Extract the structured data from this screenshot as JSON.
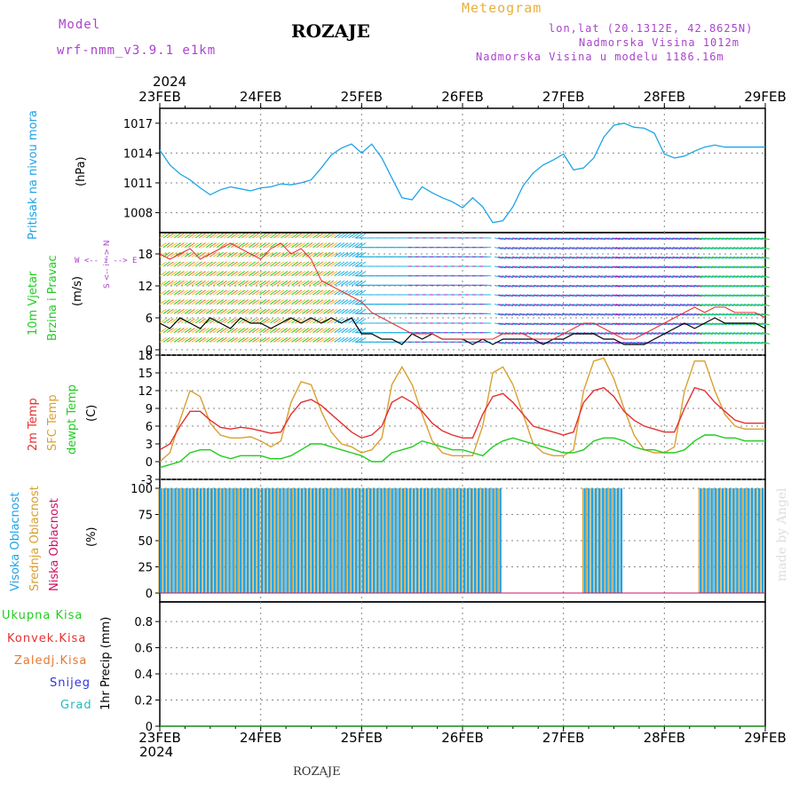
{
  "header": {
    "model_label": "Model",
    "model_name": "wrf-nmm_v3.9.1  e1km",
    "station": "ROZAJE",
    "product": "Meteogram",
    "coords": "lon,lat (20.1312E, 42.8625N)",
    "elev": "Nadmorska Visina 1012m",
    "elev_model": "Nadmorska Visina u modelu 1186.16m",
    "credit": "made by Angel",
    "footer_station": "ROZAJE"
  },
  "axis": {
    "year": "2024",
    "days": [
      "23FEB",
      "24FEB",
      "25FEB",
      "26FEB",
      "27FEB",
      "28FEB",
      "29FEB"
    ]
  },
  "panel_labels": {
    "pressure": {
      "name": "Pritisak na nivou mora",
      "unit": "(hPa)"
    },
    "wind": {
      "name1": "10m Vjetar",
      "name2": "Brzina i Pravac",
      "unit": "(m/s)",
      "compass": "W <-- i --> E",
      "ns": "S <-- i --> N"
    },
    "temp": {
      "t2m": "2m Temp",
      "sfc": "SFC Temp",
      "dew": "dewpt Temp",
      "unit": "(C)"
    },
    "cloud": {
      "high": "Visoka Oblacnost",
      "mid": "Srednja Oblacnost",
      "low": "Niska Oblacnost",
      "unit": "(%)"
    },
    "precip": {
      "total": "Ukupna Kisa",
      "conv": "Konvek.Kisa",
      "frozen": "Zaledj.Kisa",
      "snow": "Snijeg",
      "grad": "Grad",
      "unit": "1hr Precip (mm)"
    }
  },
  "colors": {
    "pressure": "#1fa3e6",
    "wind_speed": "#000000",
    "gust": "#e53030",
    "t2m": "#e53030",
    "sfc": "#d9a030",
    "dew": "#22cc22",
    "cloud_high": "#1fa3e6",
    "cloud_mid": "#d9a030",
    "cloud_low": "#cc1166",
    "purple": "#aa44cc",
    "orange": "#e8b040"
  },
  "chart_data": [
    {
      "type": "line",
      "name": "pressure",
      "yticks": [
        1008,
        1011,
        1014,
        1017
      ],
      "ylim": [
        1006,
        1018.5
      ],
      "x": [
        0,
        0.1,
        0.2,
        0.3,
        0.4,
        0.5,
        0.6,
        0.7,
        0.8,
        0.9,
        1.0,
        1.1,
        1.2,
        1.3,
        1.4,
        1.5,
        1.6,
        1.7,
        1.8,
        1.9,
        2.0,
        2.1,
        2.2,
        2.3,
        2.4,
        2.5,
        2.6,
        2.7,
        2.8,
        2.9,
        3.0,
        3.1,
        3.2,
        3.3,
        3.4,
        3.5,
        3.6,
        3.7,
        3.8,
        3.9,
        4.0,
        4.1,
        4.2,
        4.3,
        4.4,
        4.5,
        4.6,
        4.7,
        4.8,
        4.9,
        5.0,
        5.1,
        5.2,
        5.3,
        5.4,
        5.5,
        5.6,
        5.7,
        5.8,
        5.9,
        6.0
      ],
      "series": [
        {
          "values": [
            1014.3,
            1012.8,
            1011.9,
            1011.3,
            1010.5,
            1009.8,
            1010.3,
            1010.6,
            1010.4,
            1010.2,
            1010.5,
            1010.6,
            1010.9,
            1010.8,
            1011.0,
            1011.3,
            1012.5,
            1013.8,
            1014.5,
            1014.9,
            1014.0,
            1014.9,
            1013.5,
            1011.5,
            1009.5,
            1009.3,
            1010.6,
            1010.0,
            1009.5,
            1009.1,
            1008.5,
            1009.5,
            1008.6,
            1007.0,
            1007.2,
            1008.6,
            1010.7,
            1012.0,
            1012.8,
            1013.3,
            1013.9,
            1012.3,
            1012.5,
            1013.5,
            1015.6,
            1016.8,
            1017.0,
            1016.6,
            1016.5,
            1016.0,
            1013.9,
            1013.5,
            1013.7,
            1014.2,
            1014.6,
            1014.8,
            1014.6,
            1014.6,
            1014.6,
            1014.6,
            1014.6
          ]
        }
      ]
    },
    {
      "type": "line",
      "name": "wind",
      "yticks": [
        0,
        6,
        12,
        18
      ],
      "ylim": [
        -1,
        22
      ],
      "x": [
        0,
        0.1,
        0.2,
        0.3,
        0.4,
        0.5,
        0.6,
        0.7,
        0.8,
        0.9,
        1.0,
        1.1,
        1.2,
        1.3,
        1.4,
        1.5,
        1.6,
        1.7,
        1.8,
        1.9,
        2.0,
        2.1,
        2.2,
        2.3,
        2.4,
        2.5,
        2.6,
        2.7,
        2.8,
        2.9,
        3.0,
        3.1,
        3.2,
        3.3,
        3.4,
        3.5,
        3.6,
        3.7,
        3.8,
        3.9,
        4.0,
        4.1,
        4.2,
        4.3,
        4.4,
        4.5,
        4.6,
        4.7,
        4.8,
        4.9,
        5.0,
        5.1,
        5.2,
        5.3,
        5.4,
        5.5,
        5.6,
        5.7,
        5.8,
        5.9,
        6.0
      ],
      "series": [
        {
          "name": "speed",
          "values": [
            5,
            4,
            6,
            5,
            4,
            6,
            5,
            4,
            6,
            5,
            5,
            4,
            5,
            6,
            5,
            6,
            5,
            6,
            5,
            6,
            3,
            3,
            2,
            2,
            1,
            3,
            2,
            3,
            2,
            2,
            2,
            1,
            2,
            1,
            2,
            2,
            2,
            2,
            1,
            2,
            2,
            3,
            3,
            3,
            2,
            2,
            1,
            1,
            1,
            2,
            3,
            4,
            5,
            4,
            5,
            6,
            5,
            5,
            5,
            5,
            4
          ]
        },
        {
          "name": "gust",
          "values": [
            18,
            17,
            18,
            19,
            17,
            18,
            19,
            20,
            19,
            18,
            17,
            19,
            20,
            18,
            19,
            17,
            13,
            12,
            11,
            10,
            9,
            7,
            6,
            5,
            4,
            3,
            3,
            3,
            2,
            2,
            2,
            2,
            2,
            2,
            3,
            3,
            3,
            2,
            2,
            2,
            3,
            4,
            5,
            5,
            4,
            3,
            2,
            2,
            3,
            4,
            5,
            6,
            7,
            8,
            7,
            8,
            8,
            7,
            7,
            7,
            6
          ]
        }
      ]
    },
    {
      "type": "line",
      "name": "temperature",
      "yticks": [
        -3,
        0,
        3,
        6,
        9,
        12,
        15,
        18
      ],
      "ylim": [
        -3,
        18
      ],
      "x": [
        0,
        0.1,
        0.2,
        0.3,
        0.4,
        0.5,
        0.6,
        0.7,
        0.8,
        0.9,
        1.0,
        1.1,
        1.2,
        1.3,
        1.4,
        1.5,
        1.6,
        1.7,
        1.8,
        1.9,
        2.0,
        2.1,
        2.2,
        2.3,
        2.4,
        2.5,
        2.6,
        2.7,
        2.8,
        2.9,
        3.0,
        3.1,
        3.2,
        3.3,
        3.4,
        3.5,
        3.6,
        3.7,
        3.8,
        3.9,
        4.0,
        4.1,
        4.2,
        4.3,
        4.4,
        4.5,
        4.6,
        4.7,
        4.8,
        4.9,
        5.0,
        5.1,
        5.2,
        5.3,
        5.4,
        5.5,
        5.6,
        5.7,
        5.8,
        5.9,
        6.0
      ],
      "series": [
        {
          "name": "t2m",
          "values": [
            2,
            3,
            6,
            8.5,
            8.5,
            7,
            5.8,
            5.5,
            5.8,
            5.6,
            5.2,
            4.8,
            5,
            8,
            10,
            10.5,
            9.5,
            8,
            6.5,
            5,
            4,
            4.5,
            6,
            10,
            11,
            10,
            8.5,
            6.5,
            5.2,
            4.5,
            4,
            4,
            8,
            11,
            11.5,
            10,
            8,
            6,
            5.5,
            5,
            4.5,
            5,
            10,
            12,
            12.5,
            11,
            8.5,
            7,
            6,
            5.5,
            5,
            5,
            9,
            12.5,
            12,
            10,
            8.5,
            7,
            6.5,
            6.5,
            6.5
          ]
        },
        {
          "name": "sfc",
          "values": [
            0,
            1.5,
            7,
            12,
            11,
            6.5,
            4.5,
            4,
            4,
            4.2,
            3.5,
            2.5,
            3.5,
            10,
            13.5,
            13,
            8.5,
            5,
            3,
            2.5,
            1.5,
            2,
            4,
            13,
            16,
            13,
            8,
            3.5,
            1.5,
            1,
            1,
            1,
            6,
            15,
            16,
            13,
            8,
            3,
            1.5,
            1,
            1,
            2,
            12,
            17,
            17.5,
            14,
            9,
            4.5,
            2,
            1.5,
            1.5,
            2.5,
            12,
            17,
            17,
            12,
            8,
            6,
            5.5,
            5.5,
            5.5
          ]
        },
        {
          "name": "dew",
          "values": [
            -1,
            -0.5,
            0,
            1.5,
            2,
            2,
            1,
            0.5,
            1,
            1,
            1,
            0.5,
            0.5,
            1,
            2,
            3,
            3,
            2.5,
            2,
            1.5,
            1,
            0,
            0,
            1.5,
            2,
            2.5,
            3.5,
            3,
            2.5,
            2,
            2,
            1.5,
            1,
            2.5,
            3.5,
            4,
            3.5,
            3,
            2.5,
            2,
            1.5,
            1.5,
            2,
            3.5,
            4,
            4,
            3.5,
            2.5,
            2,
            2,
            1.5,
            1.5,
            2,
            3.5,
            4.5,
            4.5,
            4,
            4,
            3.5,
            3.5,
            3.5
          ]
        }
      ]
    },
    {
      "type": "bar",
      "name": "cloud_cover",
      "yticks": [
        0,
        25,
        50,
        75,
        100
      ],
      "ylim": [
        0,
        100
      ],
      "segments": [
        {
          "layer": "high",
          "from": 0.0,
          "to": 3.4,
          "value": 100
        },
        {
          "layer": "high",
          "from": 4.2,
          "to": 4.6,
          "value": 100
        },
        {
          "layer": "high",
          "from": 5.35,
          "to": 6.0,
          "value": 100
        }
      ]
    },
    {
      "type": "line",
      "name": "precipitation",
      "yticks": [
        0,
        0.2,
        0.4,
        0.6,
        0.8
      ],
      "ylim": [
        0,
        0.95
      ],
      "x": [
        0,
        6
      ],
      "series": [
        {
          "name": "total",
          "values": [
            0,
            0
          ]
        }
      ]
    }
  ]
}
